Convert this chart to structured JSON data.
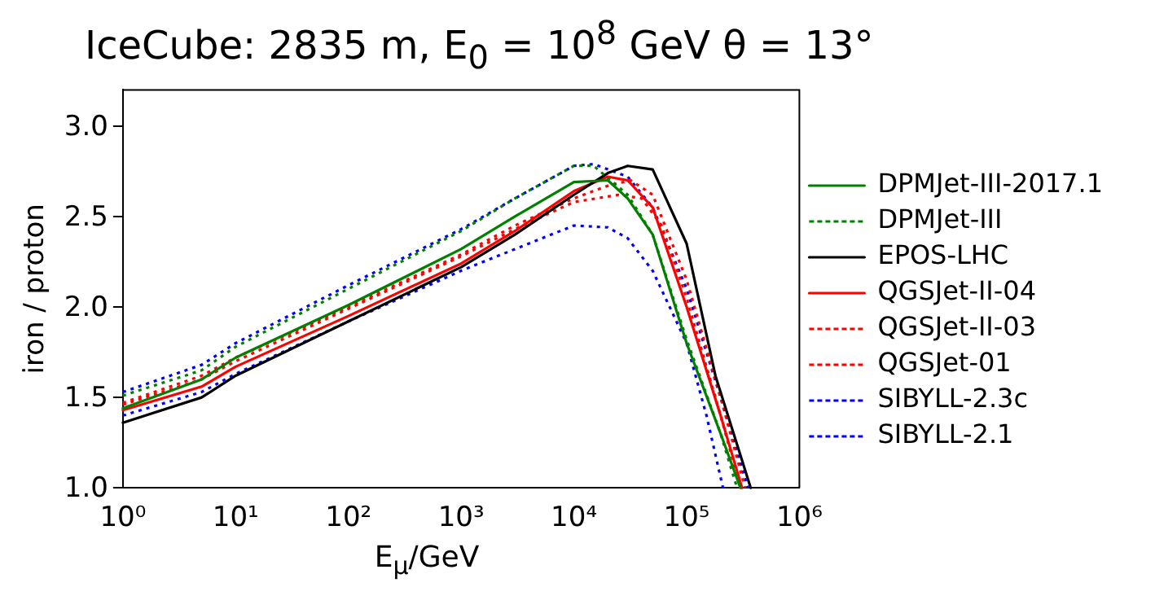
{
  "chart_data": {
    "type": "line",
    "title": "IceCube: 2835 m, E$_{0}$ = 10$^{8}$ GeV θ = 13°",
    "xlabel": "E$_{μ}$/GeV",
    "ylabel": "iron / proton",
    "log": "x",
    "xlim": [
      1,
      1000000
    ],
    "xticks": [
      {
        "value": 1,
        "label": "10⁰"
      },
      {
        "value": 10,
        "label": "10¹"
      },
      {
        "value": 100,
        "label": "10²"
      },
      {
        "value": 1000,
        "label": "10³"
      },
      {
        "value": 10000,
        "label": "10⁴"
      },
      {
        "value": 100000,
        "label": "10⁵"
      },
      {
        "value": 1000000,
        "label": "10⁶"
      }
    ],
    "ylim": [
      1.0,
      3.2
    ],
    "yticks": [
      {
        "value": 1,
        "label": "1.0"
      },
      {
        "value": 1.5,
        "label": "1.5"
      },
      {
        "value": 2,
        "label": "2.0"
      },
      {
        "value": 2.5,
        "label": "2.5"
      },
      {
        "value": 3,
        "label": "3.0"
      }
    ],
    "grid": false,
    "legend": "right",
    "marker": "none",
    "series": [
      {
        "name": "DPMJet-III-2017.1",
        "color": "#008000",
        "line_style": "solid",
        "x": [
          1,
          5,
          10,
          100,
          1000,
          3000,
          10000,
          20000,
          30000,
          50000,
          100000,
          200000,
          300000
        ],
        "values": [
          1.44,
          1.6,
          1.72,
          2.01,
          2.32,
          2.5,
          2.69,
          2.7,
          2.6,
          2.4,
          1.8,
          1.3,
          1.0
        ]
      },
      {
        "name": "DPMJet-III",
        "color": "#008000",
        "line_style": "dotted",
        "x": [
          1,
          5,
          10,
          100,
          1000,
          3000,
          10000,
          15000,
          30000,
          50000,
          100000,
          200000,
          280000
        ],
        "values": [
          1.51,
          1.65,
          1.78,
          2.1,
          2.42,
          2.6,
          2.78,
          2.78,
          2.62,
          2.4,
          1.82,
          1.3,
          1.0
        ]
      },
      {
        "name": "EPOS-LHC",
        "color": "#000000",
        "line_style": "solid",
        "x": [
          1,
          5,
          10,
          100,
          1000,
          3000,
          10000,
          20000,
          30000,
          50000,
          100000,
          180000,
          370000
        ],
        "values": [
          1.36,
          1.5,
          1.62,
          1.92,
          2.22,
          2.4,
          2.62,
          2.74,
          2.78,
          2.76,
          2.35,
          1.62,
          1.0
        ]
      },
      {
        "name": "QGSJet-II-04",
        "color": "#ff0000",
        "line_style": "solid",
        "x": [
          1,
          5,
          10,
          100,
          1000,
          3000,
          10000,
          20000,
          30000,
          50000,
          100000,
          200000,
          310000
        ],
        "values": [
          1.43,
          1.56,
          1.67,
          1.95,
          2.24,
          2.42,
          2.64,
          2.72,
          2.7,
          2.55,
          2.0,
          1.4,
          1.0
        ]
      },
      {
        "name": "QGSJet-II-03",
        "color": "#ff0000",
        "line_style": "dotted",
        "x": [
          1,
          5,
          10,
          100,
          1000,
          3000,
          10000,
          25000,
          40000,
          60000,
          100000,
          200000,
          300000
        ],
        "values": [
          1.46,
          1.6,
          1.7,
          1.99,
          2.28,
          2.43,
          2.58,
          2.62,
          2.6,
          2.45,
          2.05,
          1.4,
          1.0
        ]
      },
      {
        "name": "QGSJet-01",
        "color": "#ff0000",
        "line_style": "dotted",
        "x": [
          1,
          5,
          10,
          100,
          1000,
          3000,
          10000,
          20000,
          32000,
          50000,
          100000,
          200000,
          330000
        ],
        "values": [
          1.47,
          1.62,
          1.72,
          2.0,
          2.29,
          2.45,
          2.6,
          2.67,
          2.7,
          2.62,
          2.15,
          1.5,
          1.0
        ]
      },
      {
        "name": "SIBYLL-2.3c",
        "color": "#0000ff",
        "line_style": "dotted",
        "x": [
          1,
          5,
          10,
          100,
          1000,
          3000,
          10000,
          15000,
          30000,
          50000,
          100000,
          200000,
          350000
        ],
        "values": [
          1.53,
          1.68,
          1.8,
          2.12,
          2.43,
          2.6,
          2.78,
          2.79,
          2.72,
          2.55,
          2.1,
          1.5,
          1.0
        ]
      },
      {
        "name": "SIBYLL-2.1",
        "color": "#0000ff",
        "line_style": "dotted",
        "x": [
          1,
          5,
          10,
          100,
          1000,
          3000,
          10000,
          20000,
          30000,
          50000,
          100000,
          150000,
          210000
        ],
        "values": [
          1.4,
          1.53,
          1.63,
          1.92,
          2.2,
          2.32,
          2.45,
          2.44,
          2.38,
          2.2,
          1.8,
          1.4,
          1.0
        ]
      }
    ]
  }
}
